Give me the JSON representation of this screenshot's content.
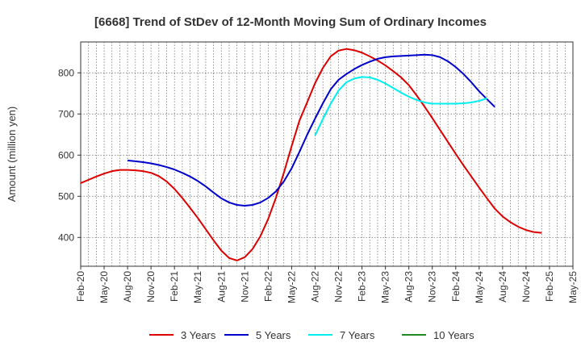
{
  "chart_data": {
    "type": "line",
    "title": "[6668]  Trend of StDev of 12-Month Moving Sum of Ordinary Incomes",
    "xlabel": "",
    "ylabel": "Amount (million yen)",
    "ylim": [
      330,
      875
    ],
    "yticks": [
      400,
      500,
      600,
      700,
      800
    ],
    "x_tick_labels": [
      "Feb-20",
      "May-20",
      "Aug-20",
      "Nov-20",
      "Feb-21",
      "May-21",
      "Aug-21",
      "Nov-21",
      "Feb-22",
      "May-22",
      "Aug-22",
      "Nov-22",
      "Feb-23",
      "May-23",
      "Aug-23",
      "Nov-23",
      "Feb-24",
      "May-24",
      "Aug-24",
      "Nov-24",
      "Feb-25",
      "May-25"
    ],
    "x_start_month": "Feb-20",
    "x_end_month": "May-25",
    "grid": true,
    "legend_position": "bottom",
    "series": [
      {
        "name": "3 Years",
        "color": "#dd0000",
        "start_month": "Feb-20",
        "values": [
          532,
          540,
          548,
          555,
          561,
          564,
          564,
          563,
          561,
          557,
          549,
          536,
          518,
          496,
          472,
          447,
          420,
          393,
          368,
          350,
          344,
          352,
          372,
          403,
          445,
          497,
          557,
          622,
          684,
          729,
          775,
          812,
          840,
          854,
          858,
          855,
          849,
          840,
          830,
          818,
          804,
          789,
          770,
          745,
          718,
          690,
          661,
          632,
          603,
          575,
          548,
          521,
          495,
          470,
          451,
          437,
          426,
          418,
          413,
          411
        ]
      },
      {
        "name": "5 Years",
        "color": "#0000cc",
        "start_month": "Aug-20",
        "values": [
          587,
          585,
          583,
          580,
          576,
          571,
          565,
          557,
          548,
          537,
          524,
          509,
          495,
          485,
          479,
          477,
          479,
          485,
          496,
          512,
          536,
          568,
          608,
          650,
          689,
          726,
          760,
          783,
          797,
          809,
          819,
          827,
          834,
          838,
          840,
          841,
          842,
          843,
          844,
          843,
          838,
          828,
          814,
          797,
          777,
          755,
          736,
          717
        ]
      },
      {
        "name": "7 Years",
        "color": "#00eeee",
        "start_month": "Aug-22",
        "values": [
          648,
          688,
          725,
          757,
          777,
          786,
          790,
          789,
          783,
          774,
          763,
          752,
          742,
          734,
          728,
          725,
          725,
          725,
          725,
          726,
          728,
          732,
          738
        ]
      },
      {
        "name": "10 Years",
        "color": "#228822",
        "start_month": "Feb-25",
        "values": []
      }
    ]
  }
}
